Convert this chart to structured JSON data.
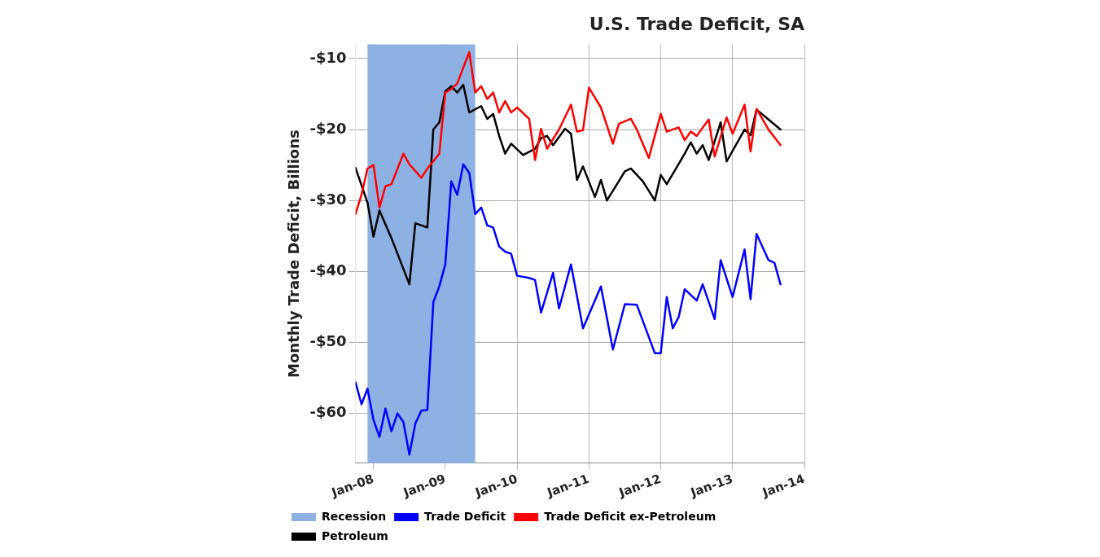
{
  "chart_data": {
    "type": "line",
    "title": "U.S. Trade Deficit, SA",
    "ylabel": "Monthly Trade Deficit, Billions",
    "xlim": [
      "2007-10",
      "2014-01"
    ],
    "ylim": [
      -67,
      -8
    ],
    "xticks": [
      {
        "value": "2008-01",
        "label": "Jan-08"
      },
      {
        "value": "2009-01",
        "label": "Jan-09"
      },
      {
        "value": "2010-01",
        "label": "Jan-10"
      },
      {
        "value": "2011-01",
        "label": "Jan-11"
      },
      {
        "value": "2012-01",
        "label": "Jan-12"
      },
      {
        "value": "2013-01",
        "label": "Jan-13"
      },
      {
        "value": "2014-01",
        "label": "Jan-14"
      }
    ],
    "yticks": [
      {
        "value": -60,
        "label": "-$60"
      },
      {
        "value": -50,
        "label": "-$50"
      },
      {
        "value": -40,
        "label": "-$40"
      },
      {
        "value": -30,
        "label": "-$30"
      },
      {
        "value": -20,
        "label": "-$20"
      },
      {
        "value": -10,
        "label": "-$10"
      }
    ],
    "grid": true,
    "legend": "bottom",
    "bands": [
      {
        "axis": "x",
        "from": "2007-12",
        "to": "2009-06",
        "label": "Recession",
        "color": "#8eb1e3"
      }
    ],
    "series": [
      {
        "name": "Trade Deficit",
        "color": "#0000ff",
        "x": [
          "2007-10",
          "2007-11",
          "2007-12",
          "2008-01",
          "2008-02",
          "2008-03",
          "2008-04",
          "2008-05",
          "2008-06",
          "2008-07",
          "2008-08",
          "2008-09",
          "2008-10",
          "2008-11",
          "2008-12",
          "2009-01",
          "2009-02",
          "2009-03",
          "2009-04",
          "2009-05",
          "2009-06",
          "2009-07",
          "2009-08",
          "2009-09",
          "2009-10",
          "2009-11",
          "2009-12",
          "2010-01",
          "2010-03",
          "2010-04",
          "2010-05",
          "2010-07",
          "2010-08",
          "2010-10",
          "2010-12",
          "2011-03",
          "2011-05",
          "2011-07",
          "2011-09",
          "2011-12",
          "2012-01",
          "2012-02",
          "2012-03",
          "2012-04",
          "2012-05",
          "2012-07",
          "2012-08",
          "2012-10",
          "2012-11",
          "2013-01",
          "2013-03",
          "2013-04",
          "2013-05",
          "2013-07",
          "2013-08",
          "2013-09"
        ],
        "values": [
          -55.6,
          -58.7,
          -56.5,
          -60.9,
          -63.3,
          -59.3,
          -62.5,
          -60,
          -61.2,
          -65.8,
          -61.4,
          -59.6,
          -59.5,
          -44.3,
          -42.1,
          -39,
          -27.3,
          -29.2,
          -24.9,
          -26.1,
          -31.9,
          -31,
          -33.5,
          -33.8,
          -36.5,
          -37.2,
          -37.5,
          -40.6,
          -40.9,
          -41.2,
          -45.8,
          -40.2,
          -45.2,
          -39,
          -48,
          -42.1,
          -51,
          -44.6,
          -44.7,
          -51.5,
          -51.5,
          -43.6,
          -48,
          -46.4,
          -42.5,
          -44.1,
          -41.8,
          -46.7,
          -38.4,
          -43.6,
          -36.9,
          -43.9,
          -34.7,
          -38.4,
          -38.8,
          -41.8
        ]
      },
      {
        "name": "Trade Deficit ex-Petroleum",
        "color": "#ff0000",
        "x": [
          "2007-10",
          "2007-11",
          "2007-12",
          "2008-01",
          "2008-02",
          "2008-03",
          "2008-04",
          "2008-06",
          "2008-07",
          "2008-09",
          "2008-10",
          "2008-12",
          "2009-01",
          "2009-02",
          "2009-03",
          "2009-05",
          "2009-06",
          "2009-07",
          "2009-08",
          "2009-09",
          "2009-10",
          "2009-11",
          "2009-12",
          "2010-01",
          "2010-03",
          "2010-04",
          "2010-05",
          "2010-06",
          "2010-08",
          "2010-10",
          "2010-11",
          "2010-12",
          "2011-01",
          "2011-03",
          "2011-05",
          "2011-06",
          "2011-08",
          "2011-09",
          "2011-11",
          "2012-01",
          "2012-02",
          "2012-04",
          "2012-05",
          "2012-06",
          "2012-07",
          "2012-09",
          "2012-10",
          "2012-12",
          "2013-01",
          "2013-03",
          "2013-04",
          "2013-05",
          "2013-07",
          "2013-09"
        ],
        "values": [
          -31.9,
          -29.2,
          -25.5,
          -25,
          -31,
          -28,
          -27.7,
          -23.4,
          -24.9,
          -26.8,
          -25.5,
          -23.4,
          -14.8,
          -14.3,
          -13.5,
          -9.1,
          -14.8,
          -13.9,
          -15.7,
          -14.8,
          -17.6,
          -16,
          -17.6,
          -16.9,
          -18.5,
          -24.3,
          -19.9,
          -22.7,
          -20,
          -16.5,
          -20.3,
          -20.1,
          -14.1,
          -16.9,
          -22,
          -19.2,
          -18.5,
          -20,
          -24,
          -17.8,
          -20.3,
          -19.7,
          -21.5,
          -20.3,
          -20.9,
          -18.6,
          -23.8,
          -18.3,
          -20.6,
          -16.5,
          -23.1,
          -17.1,
          -20,
          -22.2
        ]
      },
      {
        "name": "Petroleum",
        "color": "#000000",
        "x": [
          "2007-10",
          "2007-12",
          "2008-01",
          "2008-02",
          "2008-04",
          "2008-07",
          "2008-08",
          "2008-10",
          "2008-11",
          "2008-12",
          "2009-01",
          "2009-02",
          "2009-03",
          "2009-04",
          "2009-05",
          "2009-07",
          "2009-08",
          "2009-09",
          "2009-10",
          "2009-11",
          "2009-12",
          "2010-02",
          "2010-04",
          "2010-05",
          "2010-06",
          "2010-07",
          "2010-09",
          "2010-10",
          "2010-11",
          "2010-12",
          "2011-02",
          "2011-03",
          "2011-04",
          "2011-07",
          "2011-08",
          "2011-10",
          "2011-12",
          "2012-01",
          "2012-02",
          "2012-05",
          "2012-06",
          "2012-07",
          "2012-08",
          "2012-09",
          "2012-11",
          "2012-12",
          "2013-03",
          "2013-04",
          "2013-05",
          "2013-07",
          "2013-09"
        ],
        "values": [
          -25.4,
          -30.3,
          -35.1,
          -31.4,
          -35.3,
          -41.8,
          -33.2,
          -33.8,
          -20,
          -19,
          -14.6,
          -13.9,
          -14.8,
          -13.7,
          -17.6,
          -16.7,
          -18.5,
          -17.8,
          -20.9,
          -23.4,
          -22,
          -23.6,
          -22.7,
          -21.2,
          -20.9,
          -22.2,
          -19.9,
          -20.6,
          -27.1,
          -25.2,
          -29.5,
          -27.1,
          -30,
          -25.9,
          -25.5,
          -27.3,
          -30,
          -26.4,
          -27.7,
          -23.4,
          -21.8,
          -23.4,
          -22.2,
          -24.3,
          -19,
          -24.5,
          -20,
          -20.8,
          -17.2,
          -18.6,
          -20
        ]
      }
    ]
  }
}
